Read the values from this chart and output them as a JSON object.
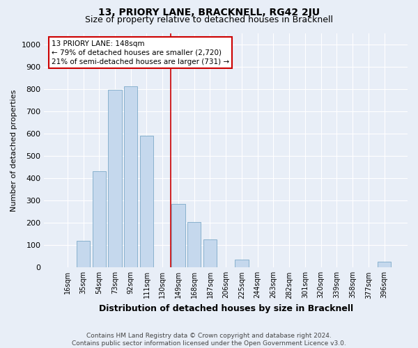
{
  "title": "13, PRIORY LANE, BRACKNELL, RG42 2JU",
  "subtitle": "Size of property relative to detached houses in Bracknell",
  "xlabel": "Distribution of detached houses by size in Bracknell",
  "ylabel": "Number of detached properties",
  "footer_line1": "Contains HM Land Registry data © Crown copyright and database right 2024.",
  "footer_line2": "Contains public sector information licensed under the Open Government Licence v3.0.",
  "categories": [
    "16sqm",
    "35sqm",
    "54sqm",
    "73sqm",
    "92sqm",
    "111sqm",
    "130sqm",
    "149sqm",
    "168sqm",
    "187sqm",
    "206sqm",
    "225sqm",
    "244sqm",
    "263sqm",
    "282sqm",
    "301sqm",
    "320sqm",
    "339sqm",
    "358sqm",
    "377sqm",
    "396sqm"
  ],
  "values": [
    0,
    120,
    430,
    795,
    810,
    590,
    0,
    285,
    205,
    125,
    0,
    35,
    0,
    0,
    0,
    0,
    0,
    0,
    0,
    0,
    25
  ],
  "bar_color": "#c5d8ed",
  "bar_edge_color": "#6a9ec0",
  "highlight_bar_index": 7,
  "highlight_line_color": "#cc0000",
  "annotation_text": "13 PRIORY LANE: 148sqm\n← 79% of detached houses are smaller (2,720)\n21% of semi-detached houses are larger (731) →",
  "annotation_box_facecolor": "#ffffff",
  "annotation_box_edgecolor": "#cc0000",
  "ylim": [
    0,
    1050
  ],
  "yticks": [
    0,
    100,
    200,
    300,
    400,
    500,
    600,
    700,
    800,
    900,
    1000
  ],
  "bg_color": "#e8eef7",
  "plot_bg_color": "#e8eef7",
  "grid_color": "#ffffff",
  "title_fontsize": 10,
  "subtitle_fontsize": 9,
  "ylabel_fontsize": 8,
  "xlabel_fontsize": 9,
  "tick_fontsize": 7,
  "footer_fontsize": 6.5,
  "annotation_fontsize": 7.5
}
